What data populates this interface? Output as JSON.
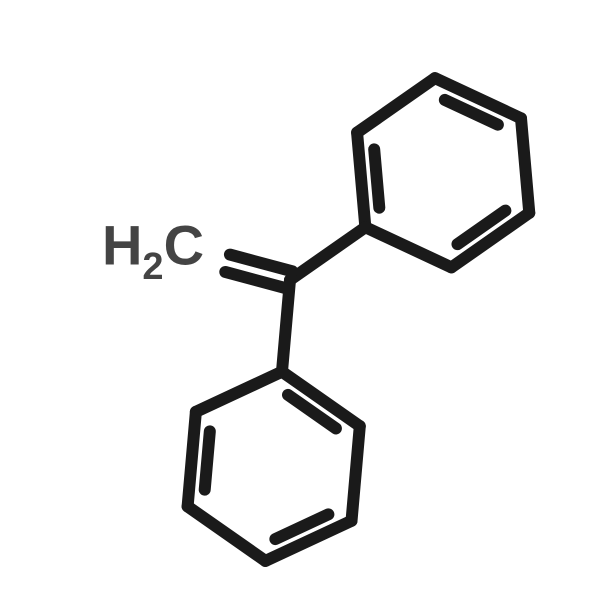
{
  "structure": {
    "type": "chemical-structure",
    "name": "1,1-Diphenylethylene",
    "background_color": "#ffffff",
    "stroke_color": "#1a1a1a",
    "label_color": "#444444",
    "single_bond_width": 12,
    "double_bond_width": 12,
    "double_bond_gap": 18,
    "ring_inner_inset": 18,
    "hex_side": 95,
    "label": {
      "H": "H",
      "sub": "2",
      "C": "C",
      "main_fontsize": 56,
      "sub_fontsize": 38
    },
    "geometry_note": "Two benzene rings attached to a central sp2 carbon; =CH2 group shown with H2C label and double bond to central carbon. Upper ring rotated ~30° relative to lower ring."
  }
}
